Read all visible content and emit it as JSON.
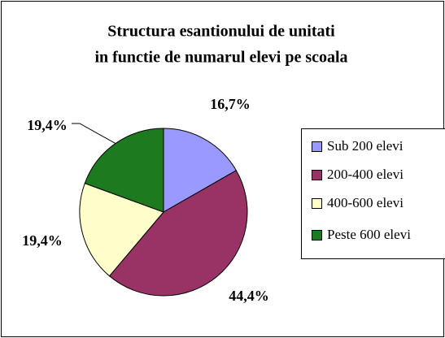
{
  "chart_data": {
    "type": "pie",
    "title_lines": [
      "Structura esantionului de unitati",
      "in functie de numarul elevi pe scoala"
    ],
    "categories": [
      "Sub 200 elevi",
      "200-400 elevi",
      "400-600 elevi",
      "Peste 600 elevi"
    ],
    "values": [
      16.7,
      44.4,
      19.4,
      19.4
    ],
    "value_labels": [
      "16,7%",
      "44,4%",
      "19,4%",
      "19,4%"
    ],
    "colors": [
      "#9999ff",
      "#993366",
      "#ffffcc",
      "#1e7a1e"
    ],
    "legend": "right"
  }
}
